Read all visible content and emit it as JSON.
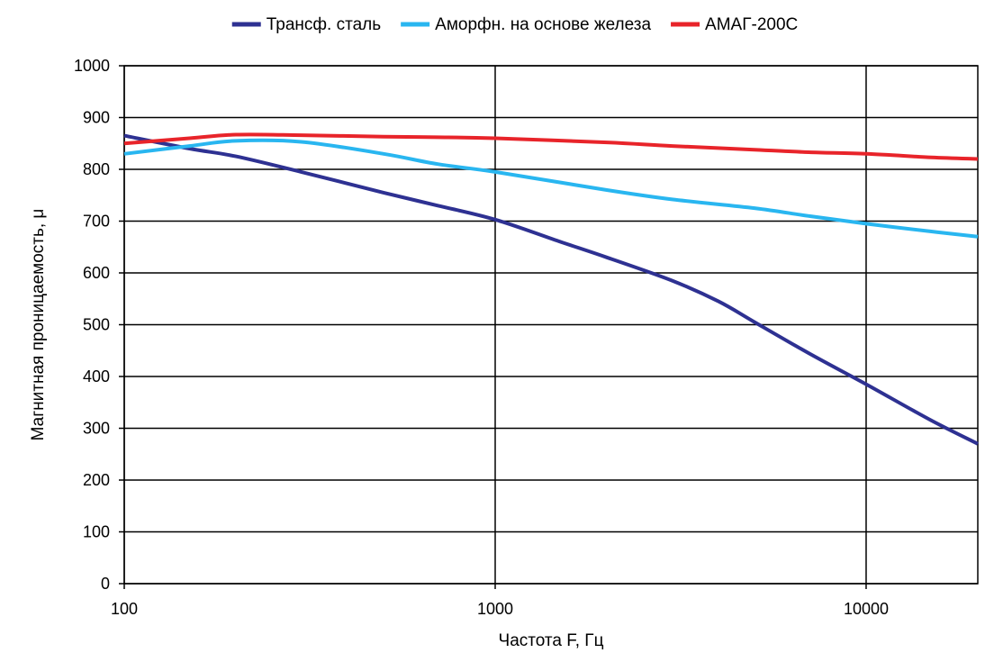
{
  "chart_data": {
    "type": "line",
    "xlabel": "Частота F, Гц",
    "ylabel": "Магнитная проницаемость, μ",
    "x_scale": "log",
    "xlim": [
      100,
      20000
    ],
    "ylim": [
      0,
      1000
    ],
    "x_ticks": [
      100,
      1000,
      10000
    ],
    "x_tick_labels": [
      "100",
      "1000",
      "10000"
    ],
    "y_ticks": [
      0,
      100,
      200,
      300,
      400,
      500,
      600,
      700,
      800,
      900,
      1000
    ],
    "y_tick_labels": [
      "0",
      "100",
      "200",
      "300",
      "400",
      "500",
      "600",
      "700",
      "800",
      "900",
      "1000"
    ],
    "grid": true,
    "legend_position": "top",
    "series": [
      {
        "name": "Трансф. сталь",
        "color": "#2E3192",
        "points": [
          [
            100,
            865
          ],
          [
            150,
            840
          ],
          [
            200,
            825
          ],
          [
            300,
            795
          ],
          [
            500,
            755
          ],
          [
            700,
            730
          ],
          [
            1000,
            703
          ],
          [
            1500,
            660
          ],
          [
            2000,
            630
          ],
          [
            3000,
            585
          ],
          [
            4000,
            545
          ],
          [
            5000,
            505
          ],
          [
            7000,
            445
          ],
          [
            10000,
            385
          ],
          [
            15000,
            315
          ],
          [
            20000,
            270
          ]
        ]
      },
      {
        "name": "Аморфн. на основе железа",
        "color": "#29B6F0",
        "points": [
          [
            100,
            830
          ],
          [
            150,
            845
          ],
          [
            200,
            855
          ],
          [
            300,
            853
          ],
          [
            500,
            830
          ],
          [
            700,
            810
          ],
          [
            1000,
            795
          ],
          [
            2000,
            760
          ],
          [
            3000,
            742
          ],
          [
            5000,
            725
          ],
          [
            7000,
            710
          ],
          [
            10000,
            695
          ],
          [
            15000,
            680
          ],
          [
            20000,
            670
          ]
        ]
      },
      {
        "name": "АМАГ-200С",
        "color": "#E8242A",
        "points": [
          [
            100,
            850
          ],
          [
            150,
            860
          ],
          [
            200,
            867
          ],
          [
            300,
            866
          ],
          [
            500,
            863
          ],
          [
            700,
            862
          ],
          [
            1000,
            860
          ],
          [
            2000,
            852
          ],
          [
            3000,
            845
          ],
          [
            5000,
            838
          ],
          [
            7000,
            833
          ],
          [
            10000,
            830
          ],
          [
            15000,
            823
          ],
          [
            20000,
            820
          ]
        ]
      }
    ]
  }
}
